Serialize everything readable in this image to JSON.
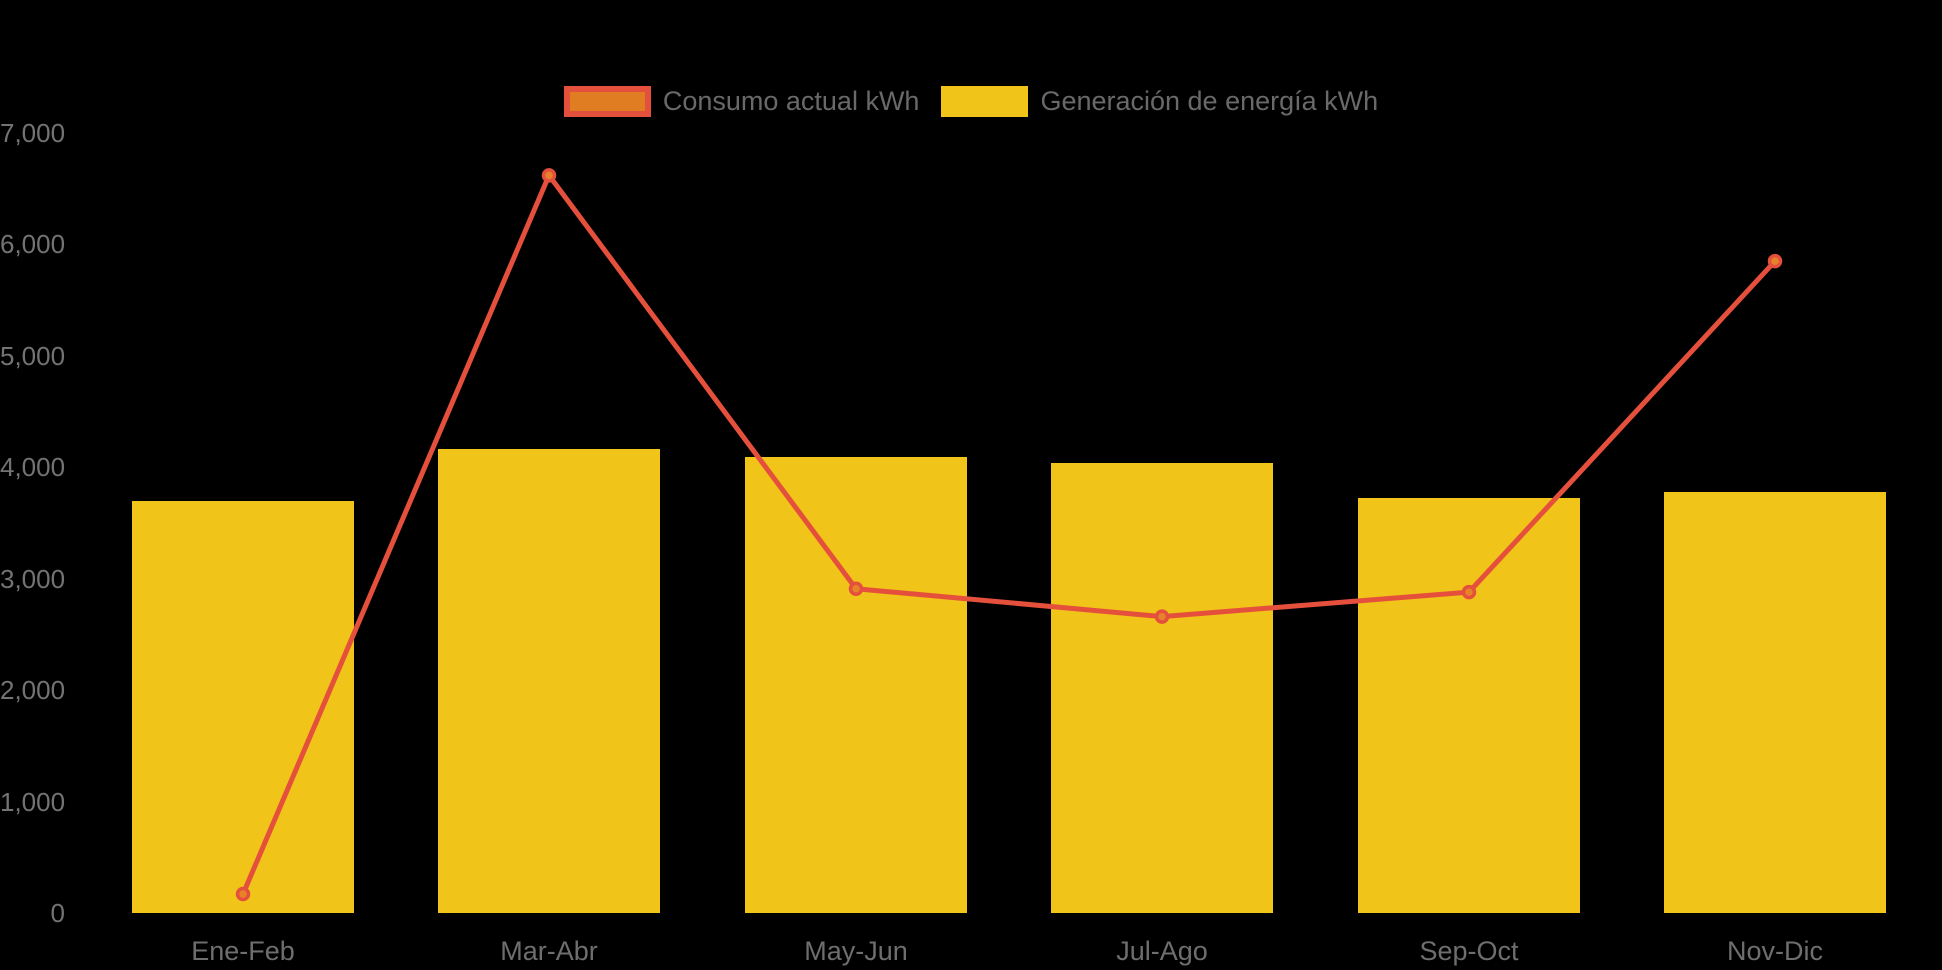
{
  "chart_data": {
    "type": "bar+line combo",
    "categories": [
      "Ene-Feb",
      "Mar-Abr",
      "May-Jun",
      "Jul-Ago",
      "Sep-Oct",
      "Nov-Dic"
    ],
    "series": [
      {
        "name": "Consumo actual kWh",
        "type": "line",
        "values": [
          170,
          6620,
          2910,
          2660,
          2880,
          5850
        ],
        "line_color": "#E5503C",
        "marker_fill": "#E6832A",
        "marker_stroke": "#E5503C"
      },
      {
        "name": "Generación de energía kWh",
        "type": "bar",
        "values": [
          3700,
          4160,
          4090,
          4040,
          3720,
          3780
        ],
        "bar_color": "#F0C419"
      }
    ],
    "title": "",
    "xlabel": "",
    "ylabel": "",
    "ylim": [
      0,
      7000
    ],
    "yticks": {
      "values": [
        0,
        1000,
        2000,
        3000,
        4000,
        5000,
        6000,
        7000
      ],
      "labels": [
        "0",
        "1,000",
        "2,000",
        "3,000",
        "4,000",
        "5,000",
        "6,000",
        "7,000"
      ]
    },
    "grid": false,
    "legend_position": "top-center",
    "background_color": "#000000",
    "axis_text_color": "#737373"
  },
  "legend": {
    "items": [
      {
        "label": "Consumo actual kWh",
        "swatch_fill": "#E07D23",
        "swatch_border": "#E5503C"
      },
      {
        "label": "Generación de energía kWh",
        "swatch_fill": "#F0C419",
        "swatch_border": "#F0C419"
      }
    ]
  }
}
